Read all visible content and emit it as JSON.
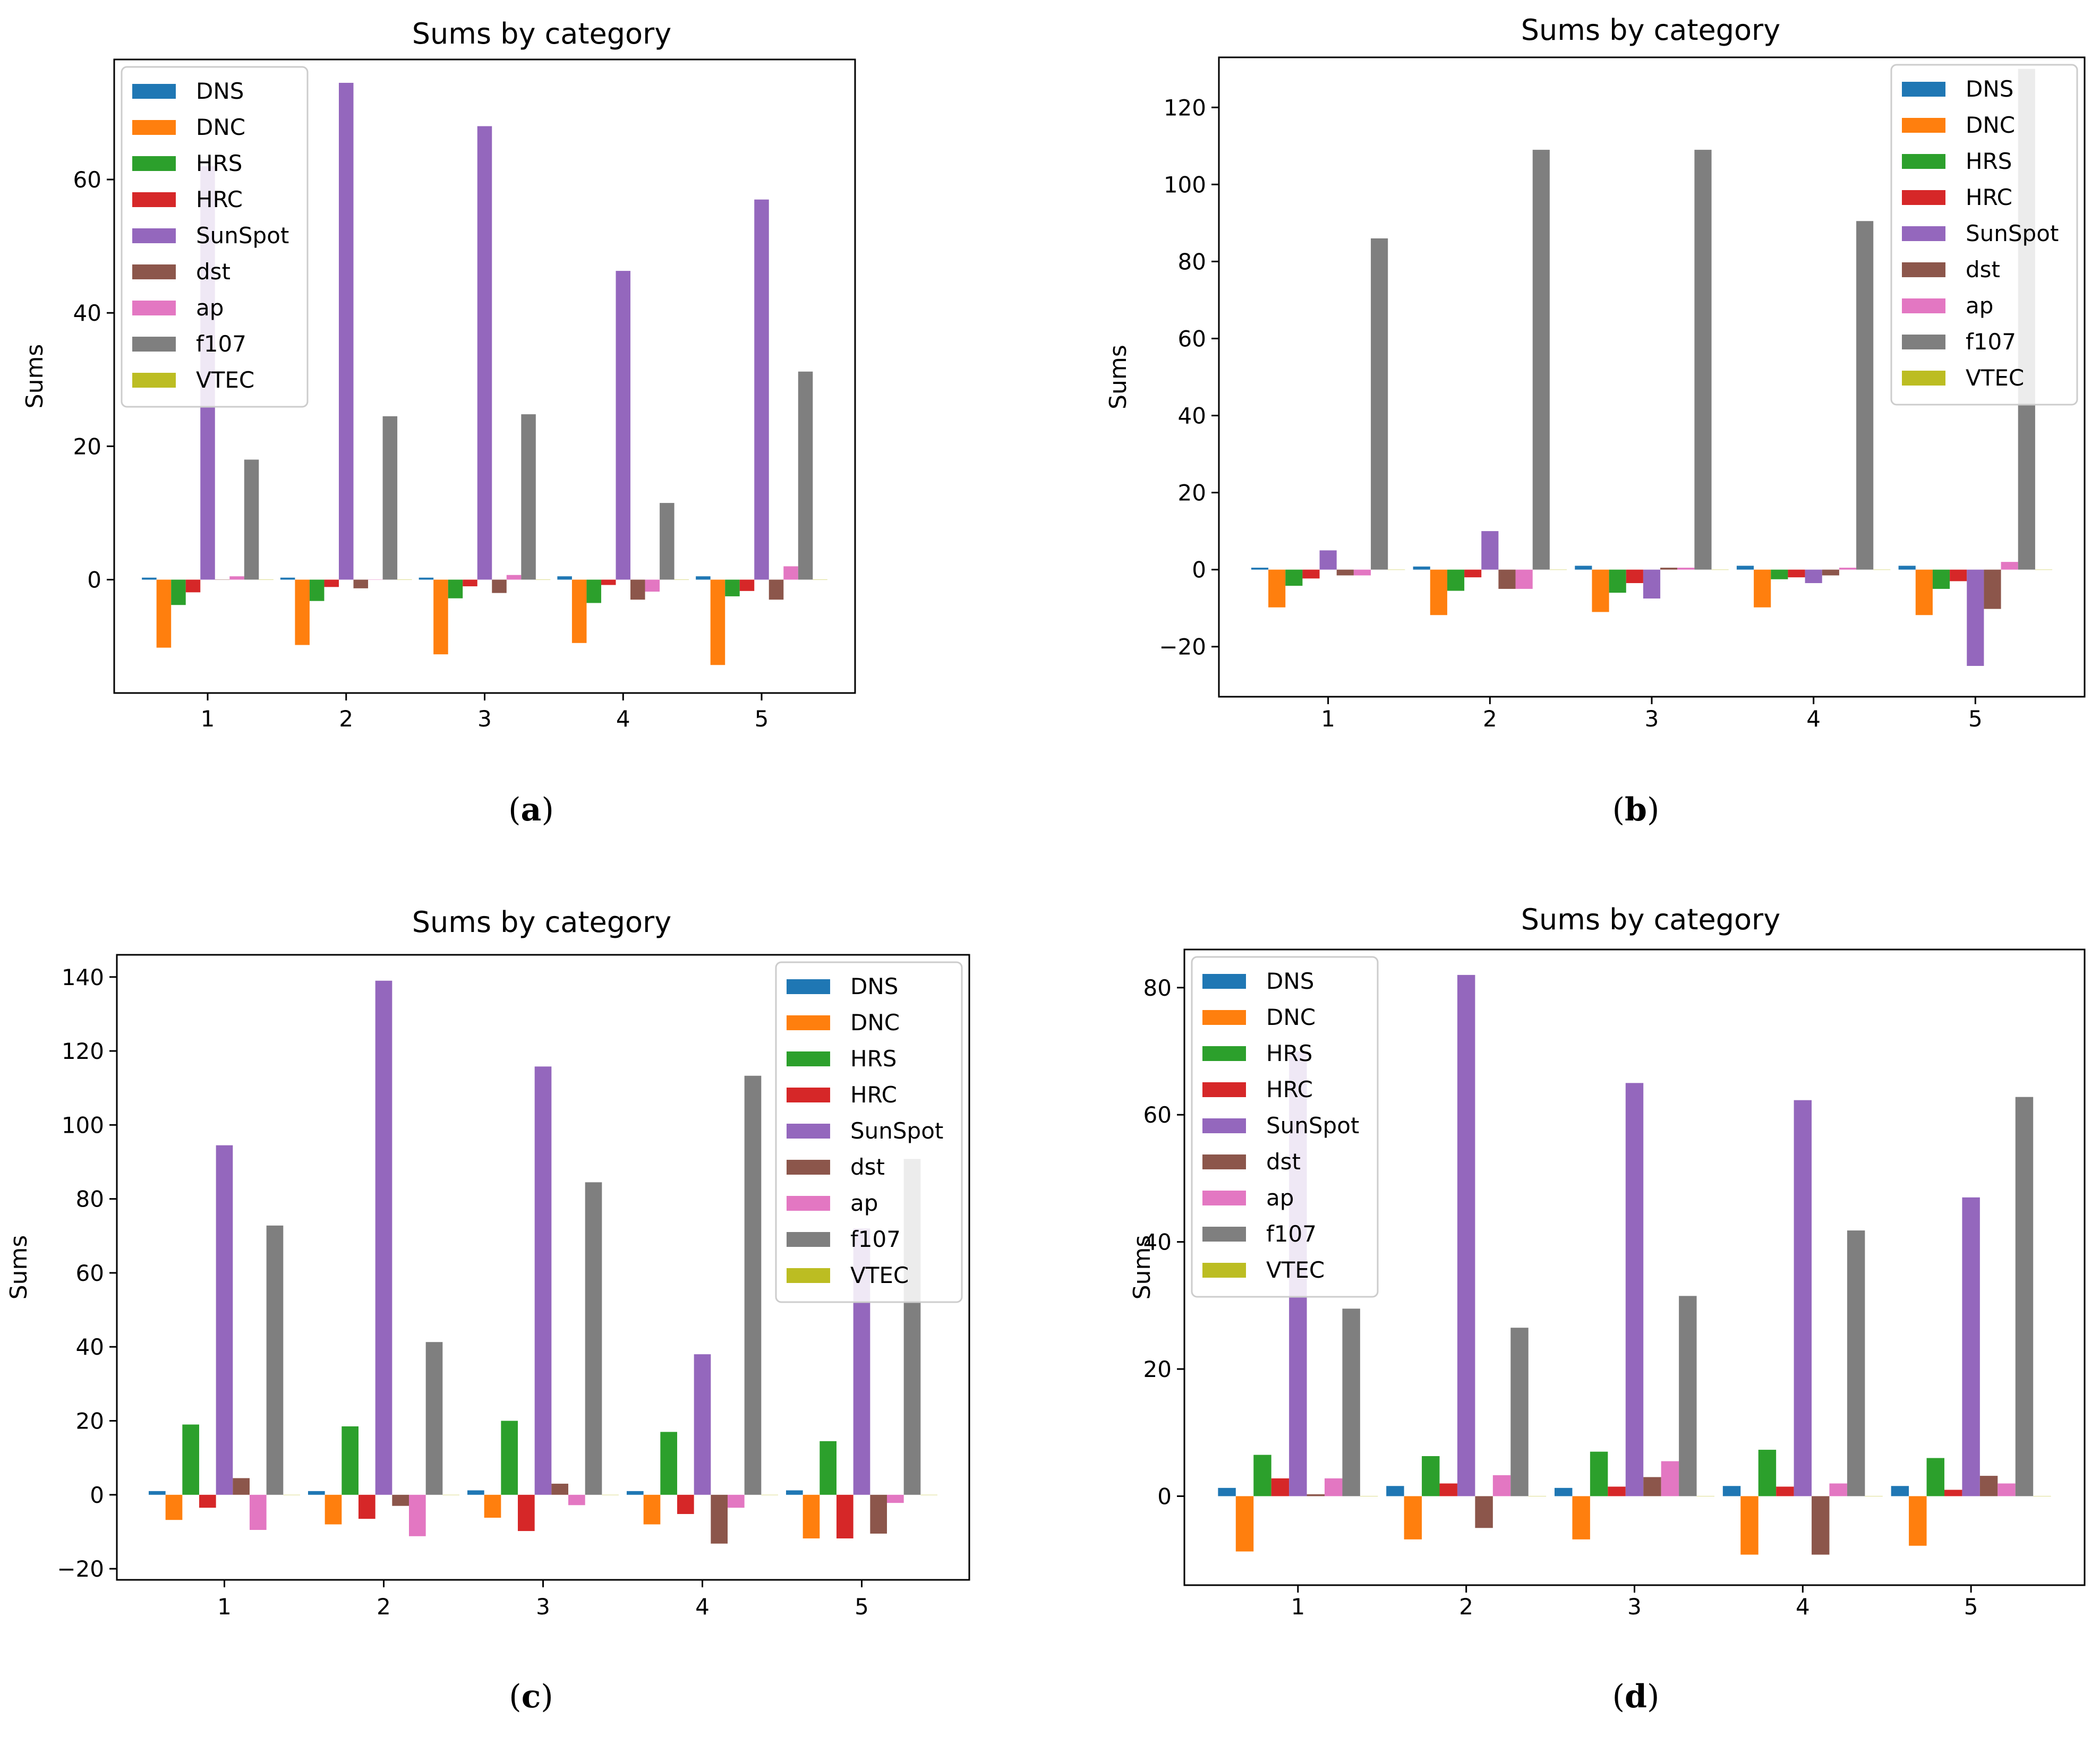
{
  "series_names": [
    "DNS",
    "DNC",
    "HRS",
    "HRC",
    "SunSpot",
    "dst",
    "ap",
    "f107",
    "VTEC"
  ],
  "colors": [
    "#1f77b4",
    "#ff7f0e",
    "#2ca02c",
    "#d62728",
    "#9467bd",
    "#8c564b",
    "#e377c2",
    "#7f7f7f",
    "#bcbd22"
  ],
  "chart_data": [
    {
      "type": "bar",
      "caption_letter": "a",
      "title": "Sums by category",
      "ylabel": "Sums",
      "categories": [
        "1",
        "2",
        "3",
        "4",
        "5"
      ],
      "ylim": [
        -17,
        78
      ],
      "yticks": [
        0,
        20,
        40,
        60
      ],
      "legend": "top-left",
      "series": [
        {
          "name": "DNS",
          "values": [
            0.3,
            0.3,
            0.3,
            0.5,
            0.5
          ]
        },
        {
          "name": "DNC",
          "values": [
            -10.2,
            -9.8,
            -11.2,
            -9.5,
            -12.8
          ]
        },
        {
          "name": "HRS",
          "values": [
            -3.8,
            -3.2,
            -2.8,
            -3.5,
            -2.5
          ]
        },
        {
          "name": "HRC",
          "values": [
            -1.9,
            -1.1,
            -1.0,
            -0.8,
            -1.7
          ]
        },
        {
          "name": "SunSpot",
          "values": [
            62.0,
            74.5,
            68.0,
            46.3,
            57.0
          ]
        },
        {
          "name": "dst",
          "values": [
            0.0,
            -1.3,
            -2.0,
            -3.0,
            -3.0
          ]
        },
        {
          "name": "ap",
          "values": [
            0.5,
            0.0,
            0.7,
            -1.8,
            2.0
          ]
        },
        {
          "name": "f107",
          "values": [
            18.0,
            24.5,
            24.8,
            11.5,
            31.2
          ]
        },
        {
          "name": "VTEC",
          "values": [
            0,
            0,
            0,
            0,
            0
          ]
        }
      ]
    },
    {
      "type": "bar",
      "caption_letter": "b",
      "title": "Sums by category",
      "ylabel": "Sums",
      "categories": [
        "1",
        "2",
        "3",
        "4",
        "5"
      ],
      "ylim": [
        -33,
        133
      ],
      "yticks": [
        -20,
        0,
        20,
        40,
        60,
        80,
        100,
        120
      ],
      "legend": "top-right",
      "series": [
        {
          "name": "DNS",
          "values": [
            0.5,
            0.8,
            1.0,
            1.0,
            1.0
          ]
        },
        {
          "name": "DNC",
          "values": [
            -9.8,
            -11.8,
            -11.0,
            -9.8,
            -11.8
          ]
        },
        {
          "name": "HRS",
          "values": [
            -4.2,
            -5.5,
            -6.0,
            -2.5,
            -5.0
          ]
        },
        {
          "name": "HRC",
          "values": [
            -2.3,
            -2.0,
            -3.5,
            -2.0,
            -3.0
          ]
        },
        {
          "name": "SunSpot",
          "values": [
            5.0,
            10.0,
            -7.5,
            -3.5,
            -25.0
          ]
        },
        {
          "name": "dst",
          "values": [
            -1.5,
            -5.0,
            0.5,
            -1.5,
            -10.2
          ]
        },
        {
          "name": "ap",
          "values": [
            -1.5,
            -5.0,
            0.5,
            0.5,
            2.0
          ]
        },
        {
          "name": "f107",
          "values": [
            86.0,
            109.0,
            109.0,
            90.5,
            130.0
          ]
        },
        {
          "name": "VTEC",
          "values": [
            0,
            0,
            0,
            0,
            0
          ]
        }
      ]
    },
    {
      "type": "bar",
      "caption_letter": "c",
      "title": "Sums by category",
      "ylabel": "Sums",
      "categories": [
        "1",
        "2",
        "3",
        "4",
        "5"
      ],
      "ylim": [
        -23,
        146
      ],
      "yticks": [
        -20,
        0,
        20,
        40,
        60,
        80,
        100,
        120,
        140
      ],
      "legend": "top-right",
      "series": [
        {
          "name": "DNS",
          "values": [
            1.0,
            1.0,
            1.2,
            1.0,
            1.2
          ]
        },
        {
          "name": "DNC",
          "values": [
            -6.8,
            -8.0,
            -6.2,
            -8.0,
            -11.8
          ]
        },
        {
          "name": "HRS",
          "values": [
            19.0,
            18.5,
            20.0,
            17.0,
            14.5
          ]
        },
        {
          "name": "HRC",
          "values": [
            -3.5,
            -6.5,
            -9.8,
            -5.2,
            -11.8
          ]
        },
        {
          "name": "SunSpot",
          "values": [
            94.5,
            139.0,
            115.8,
            38.0,
            72.0
          ]
        },
        {
          "name": "dst",
          "values": [
            4.5,
            -3.0,
            3.0,
            -13.2,
            -10.5
          ]
        },
        {
          "name": "ap",
          "values": [
            -9.5,
            -11.2,
            -2.8,
            -3.5,
            -2.2
          ]
        },
        {
          "name": "f107",
          "values": [
            72.8,
            41.3,
            84.5,
            113.3,
            90.8
          ]
        },
        {
          "name": "VTEC",
          "values": [
            0,
            0,
            0,
            0,
            0
          ]
        }
      ]
    },
    {
      "type": "bar",
      "caption_letter": "d",
      "title": "Sums by category",
      "ylabel": "Sums",
      "categories": [
        "1",
        "2",
        "3",
        "4",
        "5"
      ],
      "ylim": [
        -14,
        86
      ],
      "yticks": [
        0,
        20,
        40,
        60,
        80
      ],
      "legend": "top-left",
      "series": [
        {
          "name": "DNS",
          "values": [
            1.3,
            1.6,
            1.3,
            1.6,
            1.6
          ]
        },
        {
          "name": "DNC",
          "values": [
            -8.7,
            -6.8,
            -6.8,
            -9.2,
            -7.8
          ]
        },
        {
          "name": "HRS",
          "values": [
            6.5,
            6.3,
            7.0,
            7.3,
            6.0
          ]
        },
        {
          "name": "HRC",
          "values": [
            2.8,
            2.0,
            1.5,
            1.5,
            1.0
          ]
        },
        {
          "name": "SunSpot",
          "values": [
            70.0,
            82.0,
            65.0,
            62.3,
            47.0
          ]
        },
        {
          "name": "dst",
          "values": [
            0.3,
            -5.0,
            3.0,
            -9.2,
            3.2
          ]
        },
        {
          "name": "ap",
          "values": [
            2.8,
            3.3,
            5.5,
            2.0,
            2.0
          ]
        },
        {
          "name": "f107",
          "values": [
            29.5,
            26.5,
            31.5,
            41.8,
            62.8
          ]
        },
        {
          "name": "VTEC",
          "values": [
            0,
            0,
            0,
            0,
            0
          ]
        }
      ]
    }
  ]
}
